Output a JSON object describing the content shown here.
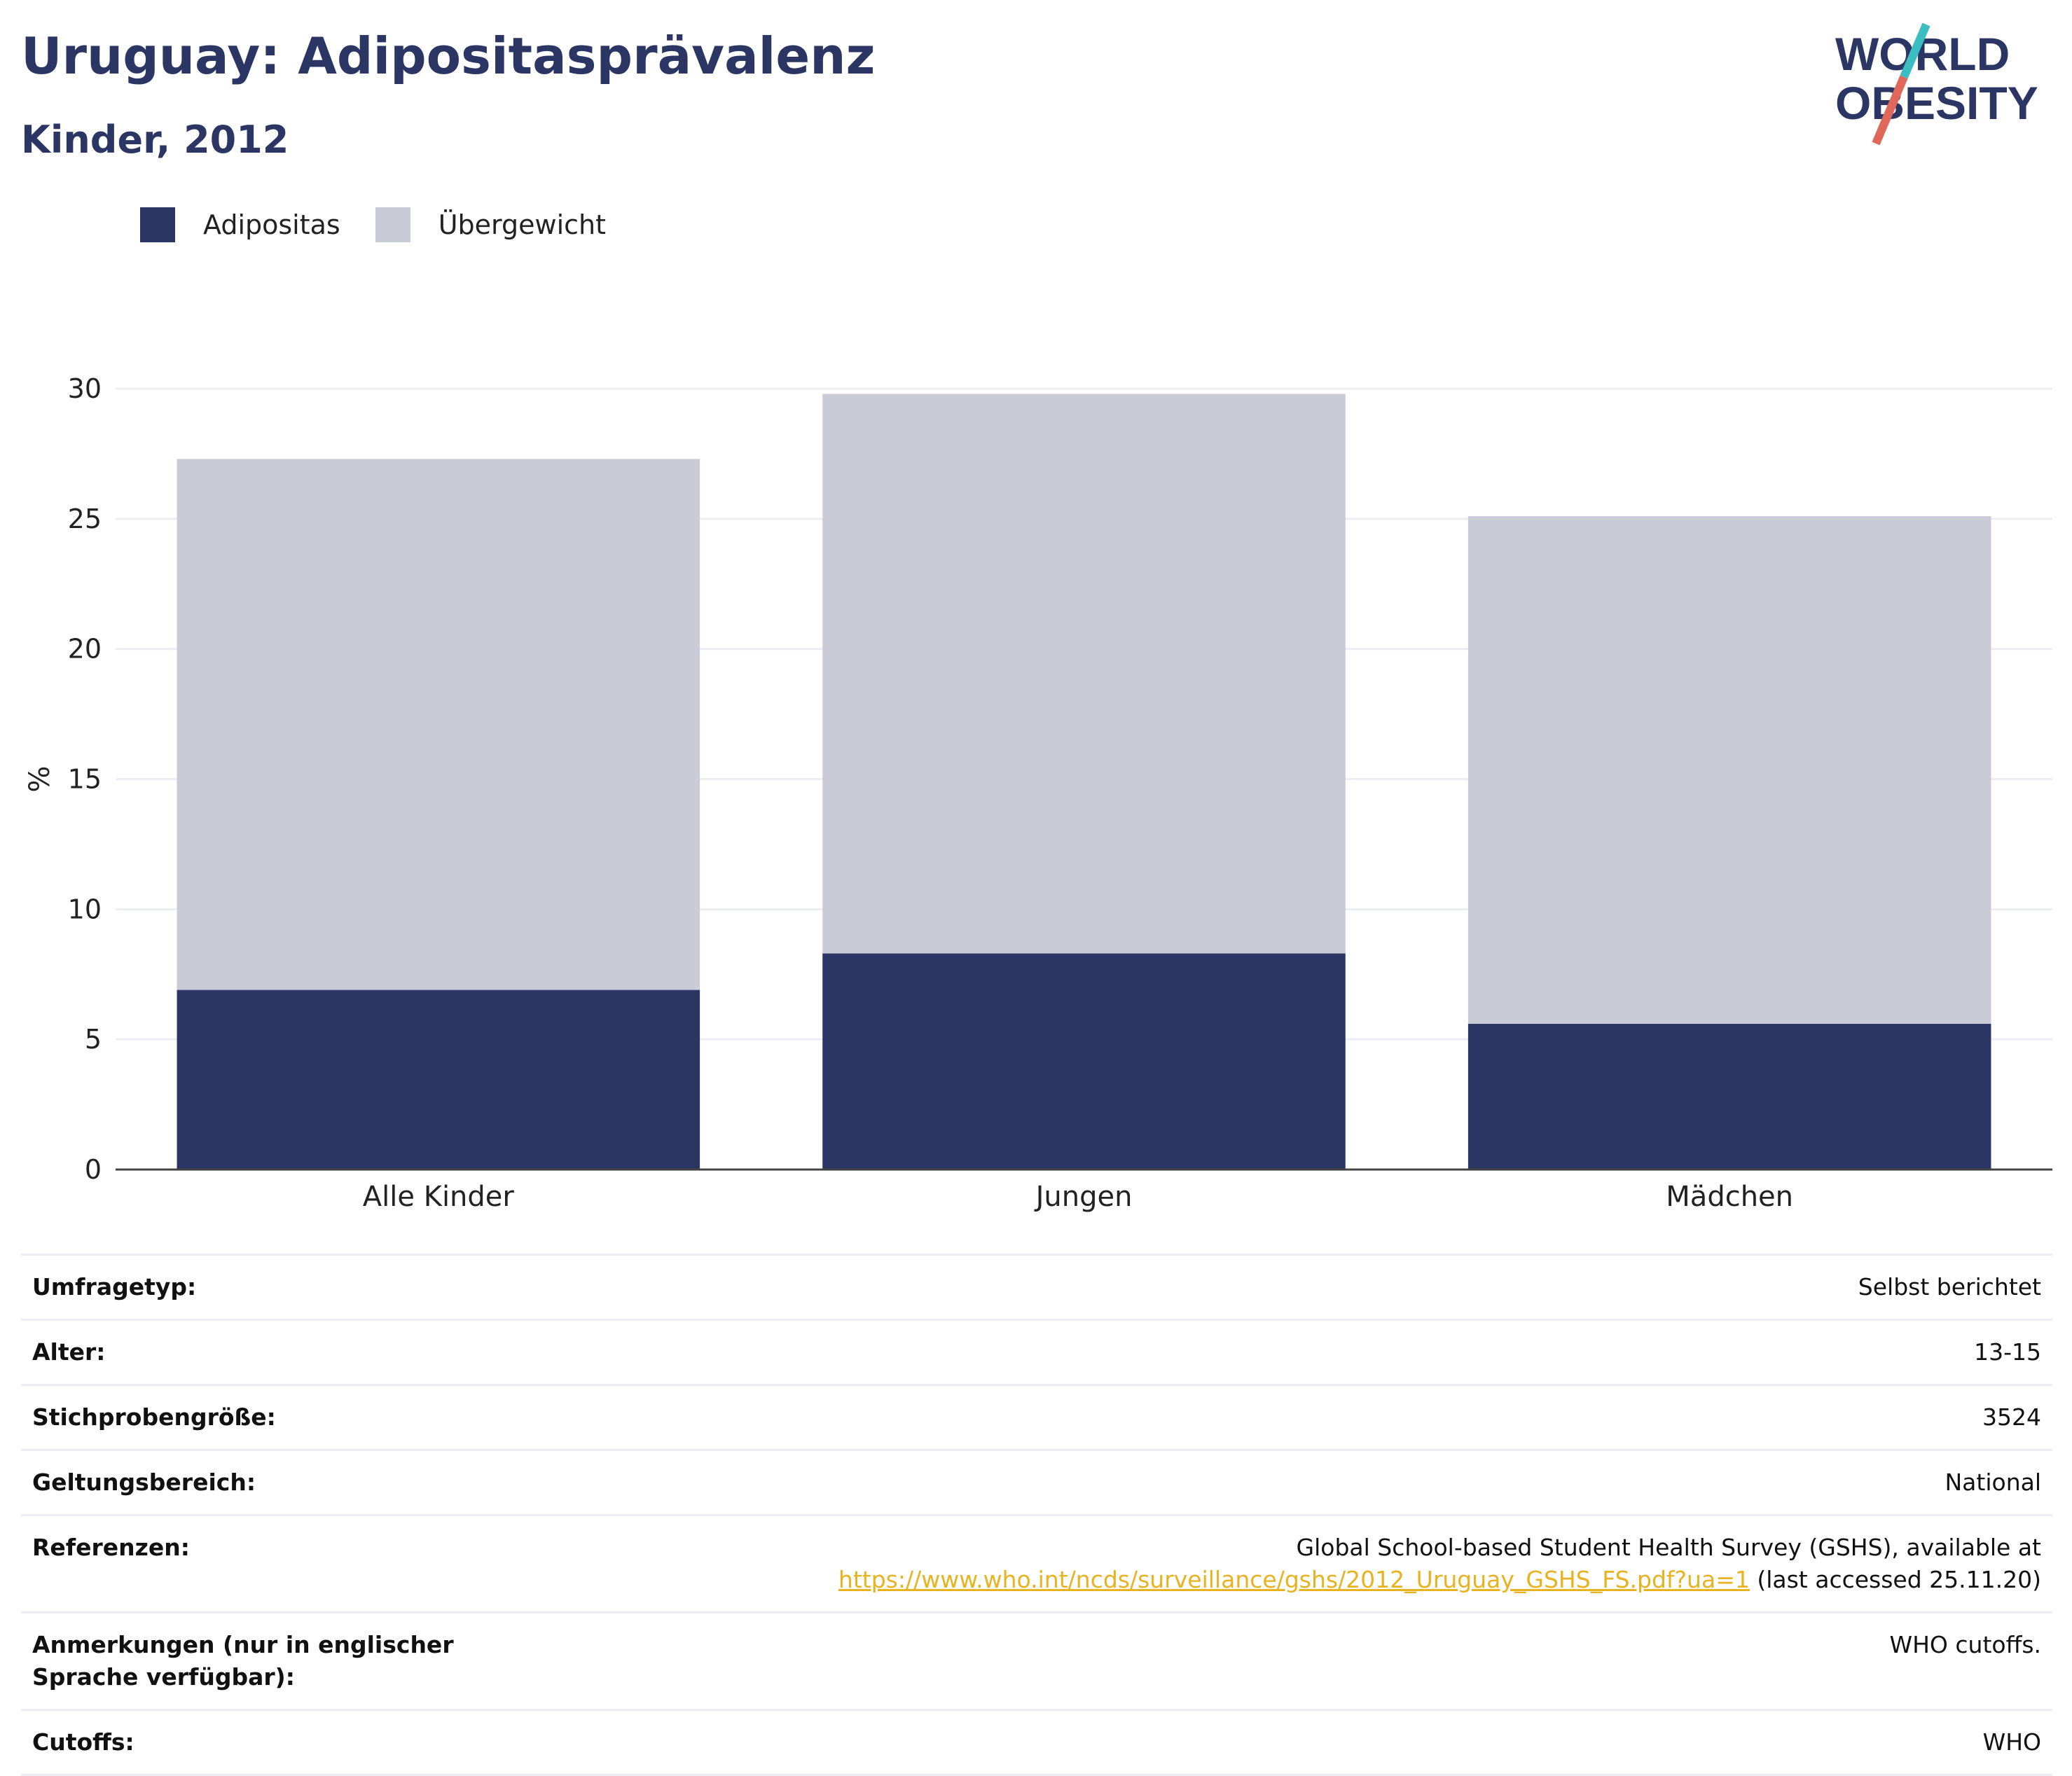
{
  "title": "Uruguay: Adipositasprävalenz",
  "subtitle": "Kinder, 2012",
  "logo": {
    "line1": "WORLD",
    "line2": "OBESITY"
  },
  "legend": [
    {
      "label": "Adipositas",
      "color": "#2b3664"
    },
    {
      "label": "Übergewicht",
      "color": "#c9cbd7"
    }
  ],
  "chart_data": {
    "type": "bar",
    "stacked": true,
    "categories": [
      "Alle Kinder",
      "Jungen",
      "Mädchen"
    ],
    "series": [
      {
        "name": "Adipositas",
        "values": [
          6.9,
          8.3,
          5.6
        ],
        "color": "#2b3664"
      },
      {
        "name": "Übergewicht",
        "values": [
          20.4,
          21.5,
          19.5
        ],
        "color": "#c9cbd7"
      }
    ],
    "ylabel": "%",
    "ylim": [
      0,
      30
    ],
    "yticks": [
      0,
      5,
      10,
      15,
      20,
      25,
      30
    ],
    "grid": true
  },
  "info_table": [
    {
      "key": "Umfragetyp:",
      "value": "Selbst berichtet"
    },
    {
      "key": "Alter:",
      "value": "13-15"
    },
    {
      "key": "Stichprobengröße:",
      "value": "3524"
    },
    {
      "key": "Geltungsbereich:",
      "value": "National"
    },
    {
      "key": "Referenzen:",
      "value": "Global School-based Student Health Survey (GSHS), available at",
      "link": "https://www.who.int/ncds/surveillance/gshs/2012_Uruguay_GSHS_FS.pdf?ua=1",
      "suffix": " (last accessed 25.11.20)"
    },
    {
      "key": "Anmerkungen (nur in englischer Sprache verfügbar):",
      "value": "WHO cutoffs."
    },
    {
      "key": "Cutoffs:",
      "value": "WHO"
    }
  ]
}
